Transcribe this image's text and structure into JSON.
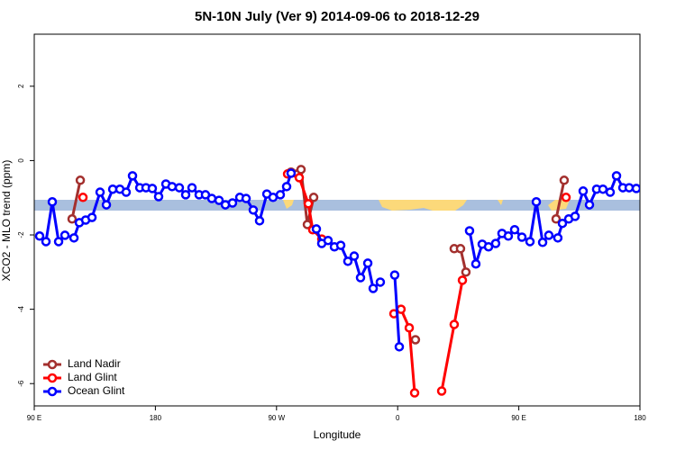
{
  "chart_data": {
    "type": "line",
    "title": "5N-10N July (Ver 9)   2014-09-06 to 2018-12-29",
    "x_label": "Longitude",
    "y_label": "XCO2 - MLO trend (ppm)",
    "xlim": [
      90,
      540
    ],
    "ylim": [
      -6.6,
      3.4
    ],
    "xticks": [
      {
        "value": 90,
        "label": "90 E"
      },
      {
        "value": 180,
        "label": "180"
      },
      {
        "value": 270,
        "label": "90 W"
      },
      {
        "value": 360,
        "label": "0"
      },
      {
        "value": 450,
        "label": "90 E"
      },
      {
        "value": 540,
        "label": "180"
      }
    ],
    "yticks": [
      -6,
      -4,
      -2,
      0,
      2
    ],
    "legend": "bottomleft",
    "series": [
      {
        "name": "Land Nadir",
        "color": "#a3302e",
        "x": [
          118.1,
          124.2,
          null,
          280.8,
          288.2,
          292.9,
          297.6,
          null,
          373.2,
          null,
          402.0,
          406.7,
          410.7,
          null,
          477.7,
          483.7
        ],
        "values": [
          -1.57,
          -0.53,
          null,
          -0.31,
          -0.24,
          -1.72,
          -0.99,
          null,
          -4.82,
          null,
          -2.37,
          -2.37,
          -3.0,
          null,
          -1.57,
          -0.53
        ]
      },
      {
        "name": "Land Glint",
        "color": "#ff0000",
        "x": [
          126.2,
          null,
          278.2,
          286.9,
          293.6,
          296.9,
          303.6,
          null,
          357.2,
          362.5,
          368.6,
          372.6,
          null,
          392.7,
          402.0,
          408.1,
          null,
          485.1
        ],
        "values": [
          -0.99,
          null,
          -0.36,
          -0.46,
          -1.16,
          -1.86,
          -2.11,
          null,
          -4.12,
          -4.0,
          -4.5,
          -6.25,
          null,
          -6.2,
          -4.41,
          -3.22,
          null,
          -0.99
        ]
      },
      {
        "name": "Ocean Glint",
        "color": "#0000ff",
        "x": [
          94.0,
          98.7,
          103.4,
          108.1,
          112.8,
          119.5,
          123.5,
          128.2,
          132.9,
          138.9,
          143.6,
          148.3,
          153.6,
          158.3,
          163.0,
          168.4,
          173.0,
          177.7,
          182.4,
          187.8,
          192.4,
          197.8,
          202.5,
          207.2,
          212.5,
          217.2,
          221.9,
          227.3,
          232.0,
          237.3,
          242.7,
          247.4,
          252.7,
          257.4,
          262.8,
          267.4,
          272.8,
          277.5,
          280.8,
          null,
          299.6,
          303.6,
          308.3,
          313.0,
          317.7,
          323.0,
          327.7,
          332.4,
          337.8,
          341.8,
          347.1,
          null,
          357.8,
          361.2,
          null,
          413.4,
          418.1,
          422.8,
          427.5,
          432.8,
          437.5,
          442.2,
          446.9,
          452.3,
          458.3,
          463.0,
          467.7,
          472.3,
          479.0,
          482.4,
          487.1,
          491.8,
          497.8,
          502.5,
          507.8,
          512.5,
          517.9,
          522.6,
          527.3,
          532.0,
          537.3
        ],
        "values": [
          -2.03,
          -2.18,
          -1.11,
          -2.18,
          -2.01,
          -2.08,
          -1.67,
          -1.6,
          -1.53,
          -0.85,
          -1.19,
          -0.77,
          -0.77,
          -0.85,
          -0.41,
          -0.73,
          -0.73,
          -0.75,
          -0.97,
          -0.63,
          -0.7,
          -0.73,
          -0.92,
          -0.73,
          -0.92,
          -0.92,
          -1.02,
          -1.07,
          -1.19,
          -1.14,
          -0.99,
          -1.02,
          -1.33,
          -1.62,
          -0.9,
          -0.99,
          -0.92,
          -0.7,
          -0.34,
          null,
          -1.84,
          -2.23,
          -2.15,
          -2.32,
          -2.28,
          -2.71,
          -2.57,
          -3.15,
          -2.76,
          -3.44,
          -3.27,
          null,
          -3.08,
          -5.01,
          null,
          -1.89,
          -2.78,
          -2.25,
          -2.32,
          -2.23,
          -1.96,
          -2.03,
          -1.86,
          -2.06,
          -2.18,
          -1.11,
          -2.2,
          -2.01,
          -2.08,
          -1.69,
          -1.57,
          -1.5,
          -0.82,
          -1.19,
          -0.77,
          -0.77,
          -0.85,
          -0.41,
          -0.73,
          -0.73,
          -0.75
        ]
      }
    ]
  }
}
